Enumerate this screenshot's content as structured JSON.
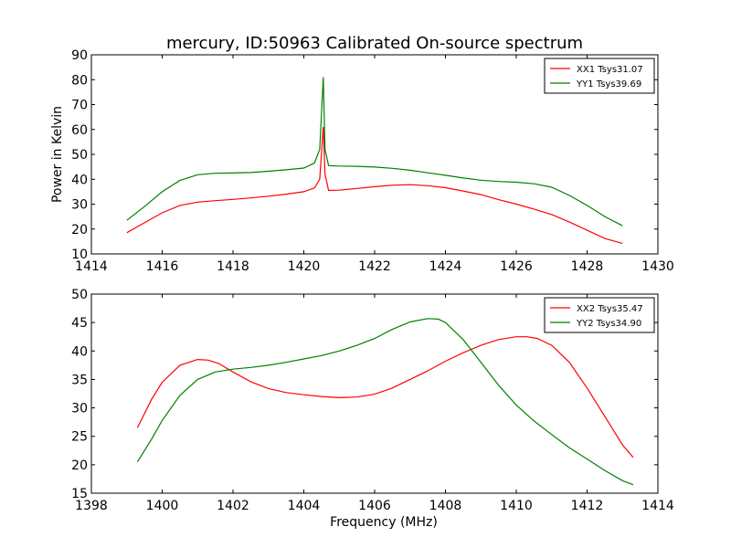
{
  "figure": {
    "title": "mercury, ID:50963 Calibrated On-source spectrum",
    "background": "#ffffff"
  },
  "chart_data": [
    {
      "type": "line",
      "title": "mercury, ID:50963 Calibrated On-source spectrum",
      "xlabel": "",
      "ylabel": "Power in Kelvin",
      "xlim": [
        1414,
        1430
      ],
      "ylim": [
        10,
        90
      ],
      "xticks": [
        1414,
        1416,
        1418,
        1420,
        1422,
        1424,
        1426,
        1428,
        1430
      ],
      "yticks": [
        10,
        20,
        30,
        40,
        50,
        60,
        70,
        80,
        90
      ],
      "grid": false,
      "legend": "top-right",
      "series": [
        {
          "name": "XX1 Tsys31.07",
          "color": "#ff0000",
          "x": [
            1415.0,
            1415.5,
            1416.0,
            1416.5,
            1417.0,
            1417.5,
            1418.0,
            1418.5,
            1419.0,
            1419.5,
            1420.0,
            1420.3,
            1420.45,
            1420.55,
            1420.6,
            1420.7,
            1421.0,
            1421.5,
            1422.0,
            1422.5,
            1423.0,
            1423.5,
            1424.0,
            1424.5,
            1425.0,
            1425.5,
            1426.0,
            1426.5,
            1427.0,
            1427.5,
            1428.0,
            1428.5,
            1429.0
          ],
          "y": [
            18.5,
            22.5,
            26.5,
            29.5,
            30.8,
            31.4,
            31.9,
            32.5,
            33.2,
            34.0,
            35.0,
            36.5,
            40.0,
            61.0,
            42.0,
            35.5,
            35.6,
            36.3,
            37.0,
            37.6,
            37.8,
            37.4,
            36.6,
            35.3,
            33.8,
            31.8,
            30.0,
            28.0,
            25.8,
            22.8,
            19.5,
            16.2,
            14.2
          ]
        },
        {
          "name": "YY1 Tsys39.69",
          "color": "#008000",
          "x": [
            1415.0,
            1415.5,
            1416.0,
            1416.5,
            1417.0,
            1417.5,
            1418.0,
            1418.5,
            1419.0,
            1419.5,
            1420.0,
            1420.3,
            1420.45,
            1420.55,
            1420.6,
            1420.7,
            1421.0,
            1421.5,
            1422.0,
            1422.5,
            1423.0,
            1423.5,
            1424.0,
            1424.5,
            1425.0,
            1425.5,
            1426.0,
            1426.5,
            1427.0,
            1427.5,
            1428.0,
            1428.5,
            1429.0
          ],
          "y": [
            23.5,
            29.0,
            35.0,
            39.5,
            41.8,
            42.4,
            42.5,
            42.7,
            43.2,
            43.8,
            44.5,
            46.5,
            52.0,
            81.0,
            52.0,
            45.5,
            45.3,
            45.2,
            44.9,
            44.4,
            43.6,
            42.6,
            41.6,
            40.5,
            39.6,
            39.1,
            38.8,
            38.2,
            36.8,
            33.5,
            29.5,
            25.0,
            21.3
          ]
        }
      ]
    },
    {
      "type": "line",
      "title": "",
      "xlabel": "Frequency (MHz)",
      "ylabel": "",
      "xlim": [
        1398,
        1414
      ],
      "ylim": [
        15,
        50
      ],
      "xticks": [
        1398,
        1400,
        1402,
        1404,
        1406,
        1408,
        1410,
        1412,
        1414
      ],
      "yticks": [
        15,
        20,
        25,
        30,
        35,
        40,
        45,
        50
      ],
      "grid": false,
      "legend": "top-right",
      "series": [
        {
          "name": "XX2 Tsys35.47",
          "color": "#ff0000",
          "x": [
            1399.3,
            1399.7,
            1400.0,
            1400.5,
            1401.0,
            1401.3,
            1401.6,
            1402.0,
            1402.5,
            1403.0,
            1403.5,
            1404.0,
            1404.5,
            1405.0,
            1405.5,
            1406.0,
            1406.5,
            1407.0,
            1407.5,
            1408.0,
            1408.5,
            1409.0,
            1409.5,
            1410.0,
            1410.3,
            1410.6,
            1411.0,
            1411.5,
            1412.0,
            1412.5,
            1413.0,
            1413.3
          ],
          "y": [
            26.5,
            31.5,
            34.5,
            37.5,
            38.5,
            38.4,
            37.8,
            36.3,
            34.6,
            33.4,
            32.7,
            32.3,
            32.0,
            31.8,
            31.9,
            32.4,
            33.5,
            35.0,
            36.5,
            38.2,
            39.7,
            41.0,
            42.0,
            42.5,
            42.5,
            42.2,
            41.0,
            38.0,
            33.5,
            28.5,
            23.5,
            21.3
          ]
        },
        {
          "name": "YY2 Tsys34.90",
          "color": "#008000",
          "x": [
            1399.3,
            1399.7,
            1400.0,
            1400.5,
            1401.0,
            1401.5,
            1402.0,
            1402.5,
            1403.0,
            1403.5,
            1404.0,
            1404.5,
            1405.0,
            1405.5,
            1406.0,
            1406.5,
            1407.0,
            1407.5,
            1407.8,
            1408.0,
            1408.5,
            1409.0,
            1409.5,
            1410.0,
            1410.5,
            1411.0,
            1411.5,
            1412.0,
            1412.5,
            1413.0,
            1413.3
          ],
          "y": [
            20.5,
            24.5,
            27.8,
            32.2,
            35.0,
            36.3,
            36.8,
            37.1,
            37.5,
            38.0,
            38.6,
            39.2,
            40.0,
            41.0,
            42.2,
            43.8,
            45.1,
            45.7,
            45.6,
            45.0,
            42.0,
            38.0,
            34.0,
            30.5,
            27.7,
            25.3,
            23.0,
            21.0,
            19.0,
            17.2,
            16.5
          ]
        }
      ]
    }
  ]
}
